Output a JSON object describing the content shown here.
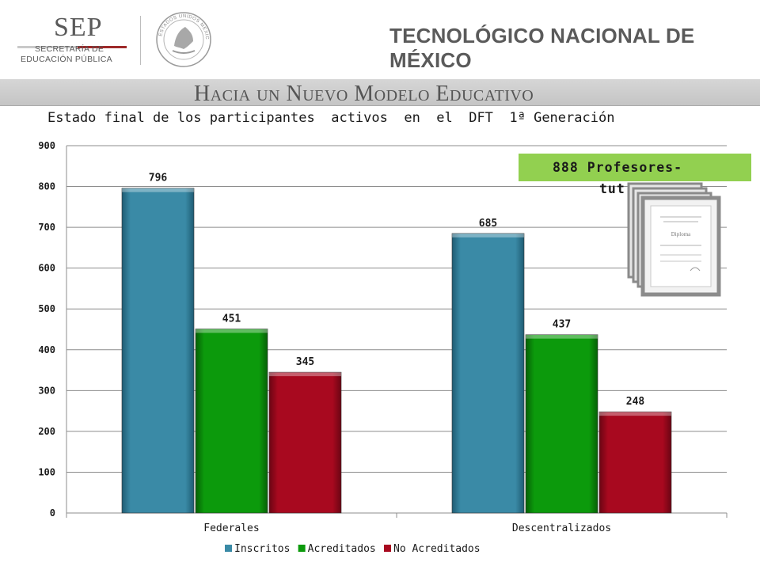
{
  "header": {
    "sep_title": "SEP",
    "sep_sub1": "SECRETARÍA DE",
    "sep_sub2": "EDUCACIÓN PÚBLICA",
    "seal_text": "ESTADOS UNIDOS MEXICANOS",
    "institution": "TECNOLÓGICO NACIONAL DE MÉXICO"
  },
  "band": {
    "title": "Hacia un Nuevo Modelo Educativo"
  },
  "slide": {
    "title": "Estado final de los participantes  activos  en  el  DFT  1ª Generación"
  },
  "callout": {
    "line1": "888 Profesores-",
    "line2": "tut",
    "diploma_text": "Diploma"
  },
  "colors": {
    "inscritos": "#3a8aa6",
    "acreditados": "#0c9a0c",
    "no_acreditados": "#a8091f",
    "callout": "#92d050"
  },
  "chart_data": {
    "type": "bar",
    "title": "Estado final de los participantes  activos  en  el  DFT  1ª Generación",
    "categories": [
      "Federales",
      "Descentralizados"
    ],
    "series": [
      {
        "name": "Inscritos",
        "values": [
          796,
          685
        ],
        "color": "#3a8aa6"
      },
      {
        "name": "Acreditados",
        "values": [
          451,
          437
        ],
        "color": "#0c9a0c"
      },
      {
        "name": "No Acreditados",
        "values": [
          345,
          248
        ],
        "color": "#a8091f"
      }
    ],
    "ylim": [
      0,
      900
    ],
    "yticks": [
      0,
      100,
      200,
      300,
      400,
      500,
      600,
      700,
      800,
      900
    ],
    "grid": true,
    "legend_position": "bottom",
    "xlabel": "",
    "ylabel": ""
  }
}
